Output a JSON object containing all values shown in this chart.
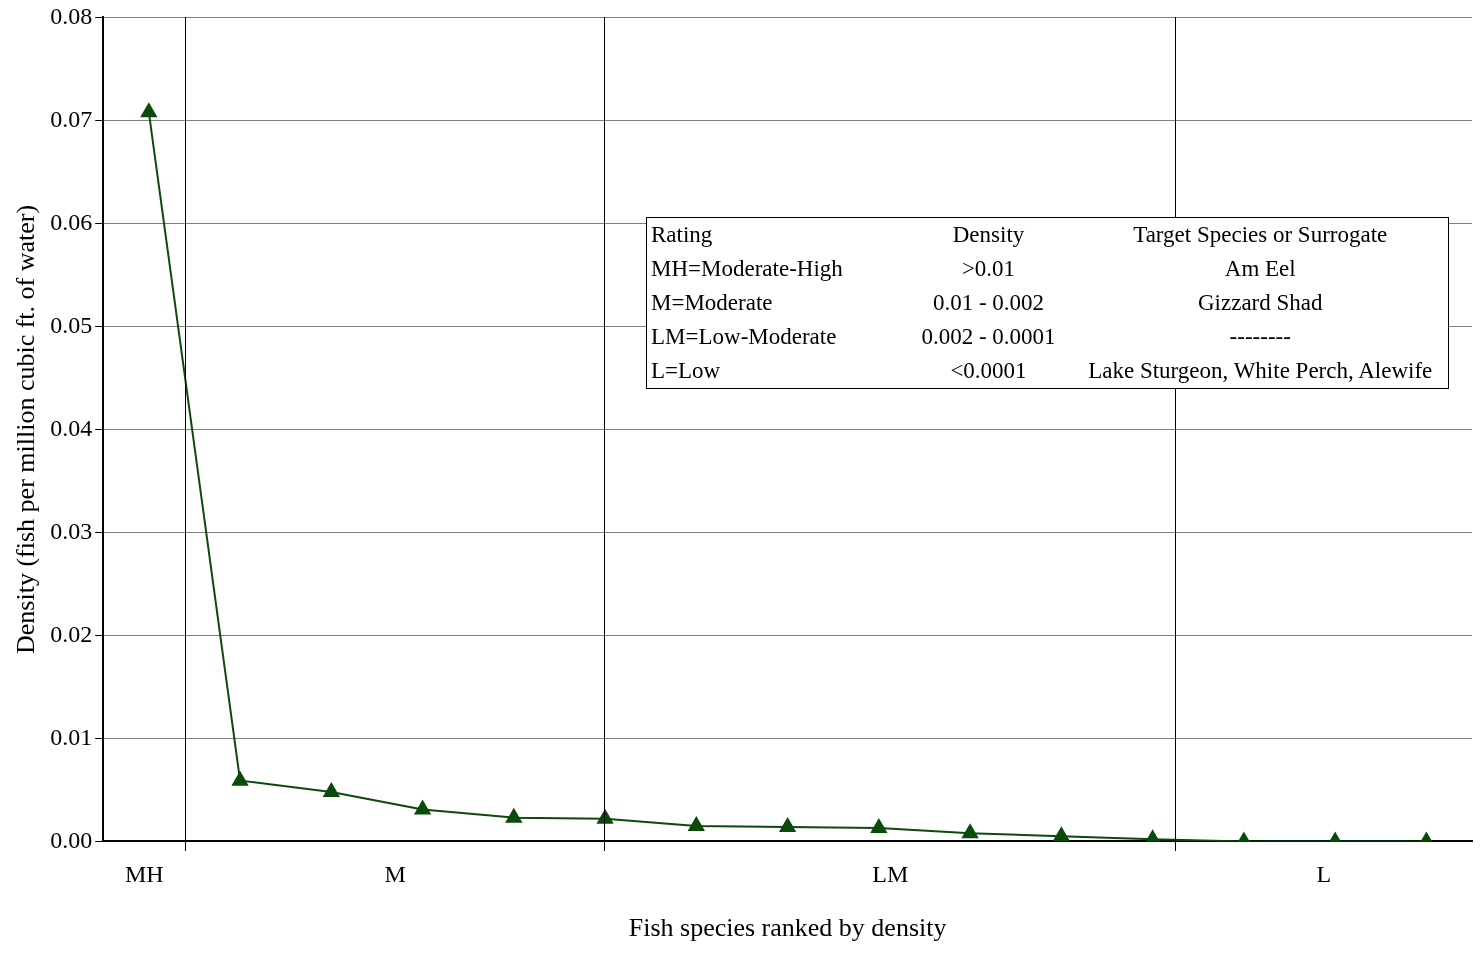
{
  "chart_data": {
    "type": "line",
    "xlabel": "Fish species ranked by density",
    "ylabel": "Density (fish per million cubic ft. of water)",
    "categories": [
      null,
      null,
      null,
      null,
      null,
      null,
      null,
      null,
      null,
      null,
      null,
      null,
      null,
      null,
      null
    ],
    "series": [
      {
        "color": "#0b4a0b",
        "values": [
          0.0708,
          0.0059,
          0.0048,
          0.0031,
          0.0023,
          0.0022,
          0.0015,
          0.0014,
          0.0013,
          0.0008,
          0.0005,
          0.0002,
          0,
          0,
          0
        ]
      }
    ],
    "ylim": [
      0,
      0.08
    ],
    "yticks": [
      {
        "value": 0,
        "label": "0.00"
      },
      0.01,
      0.02,
      0.03,
      0.04,
      0.05,
      0.06,
      0.07,
      0.08
    ],
    "grid": "y",
    "legend": false,
    "marker": "triangle",
    "line_style": "solid",
    "annotations": [
      "MH",
      "M",
      "LM",
      "L",
      "Rating",
      "Density",
      "Target Species or Surrogate",
      "MH=Moderate-High",
      ">0.01",
      "Am Eel",
      "M=Moderate",
      "0.01 - 0.002",
      "Gizzard Shad",
      "LM=Low-Moderate",
      "0.002 - 0.0001",
      "--------",
      "L=Low",
      "<0.0001",
      "Lake Sturgeon, White Perch, Alewife"
    ]
  }
}
